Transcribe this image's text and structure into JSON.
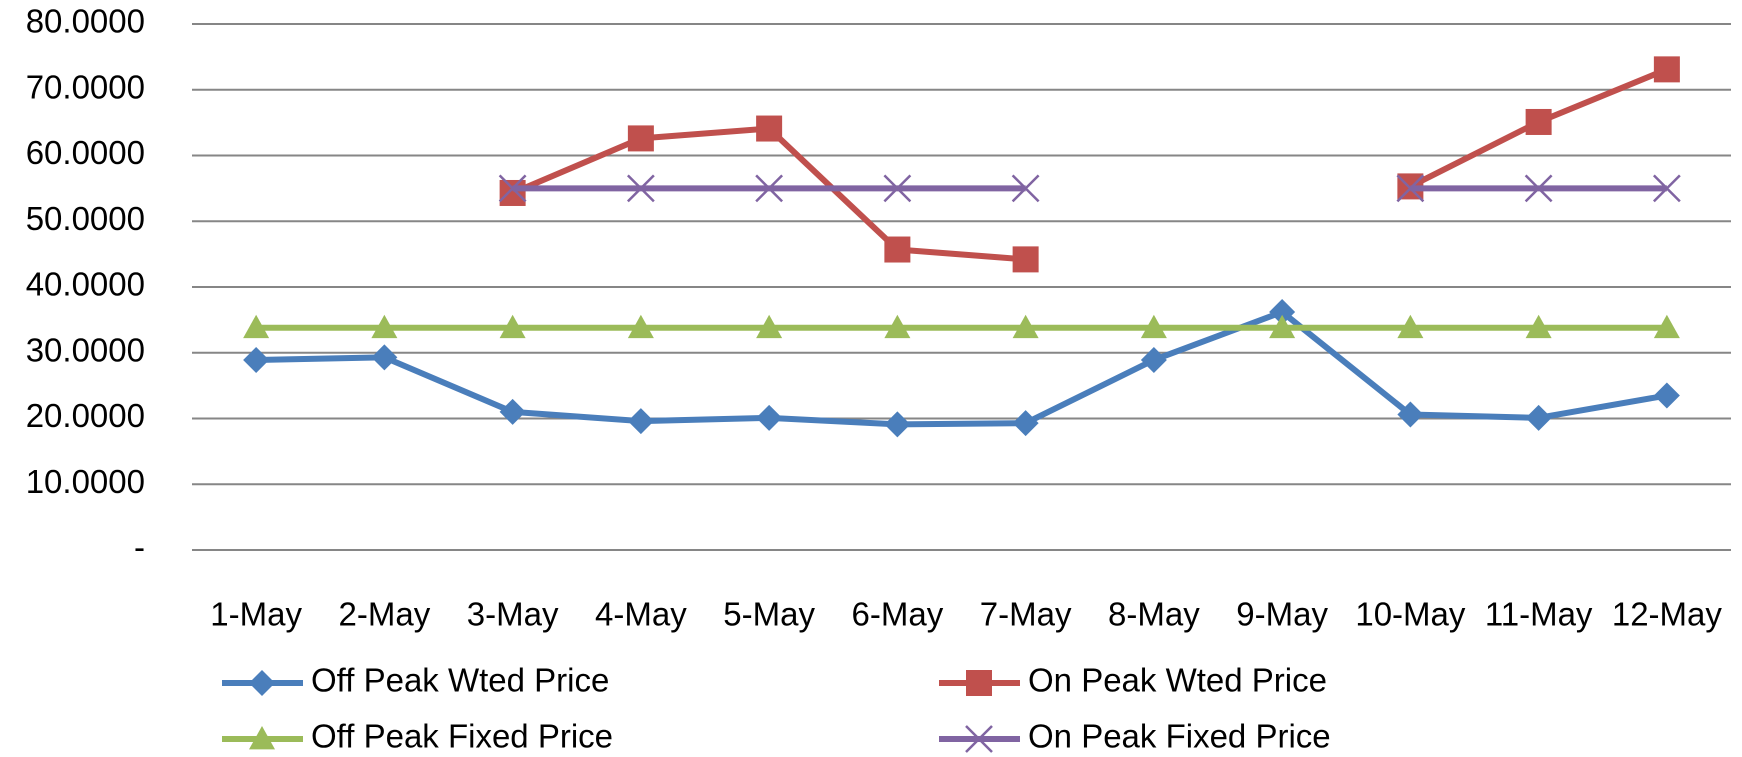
{
  "chart_data": {
    "type": "line",
    "categories": [
      "1-May",
      "2-May",
      "3-May",
      "4-May",
      "5-May",
      "6-May",
      "7-May",
      "8-May",
      "9-May",
      "10-May",
      "11-May",
      "12-May"
    ],
    "series": [
      {
        "name": "Off Peak Wted Price",
        "color": "#4a7ebb",
        "marker": "diamond",
        "values": [
          28.9,
          29.3,
          21.0,
          19.6,
          20.1,
          19.1,
          19.3,
          28.9,
          36.2,
          20.6,
          20.1,
          23.5
        ]
      },
      {
        "name": "On Peak Wted Price",
        "color": "#c0504d",
        "marker": "square",
        "values": [
          null,
          null,
          54.3,
          62.6,
          64.1,
          45.7,
          44.2,
          null,
          null,
          55.3,
          65.1,
          73.1
        ]
      },
      {
        "name": "Off Peak Fixed Price",
        "color": "#9bbb59",
        "marker": "triangle",
        "values": [
          33.8,
          33.8,
          33.8,
          33.8,
          33.8,
          33.8,
          33.8,
          33.8,
          33.8,
          33.8,
          33.8,
          33.8
        ]
      },
      {
        "name": "On Peak Fixed Price",
        "color": "#8064a2",
        "marker": "x",
        "values": [
          null,
          null,
          55,
          55,
          55,
          55,
          55,
          null,
          null,
          55,
          55,
          55
        ]
      }
    ],
    "ylim": [
      0,
      80
    ],
    "yticks": [
      {
        "value": 0,
        "label": "-"
      },
      {
        "value": 10,
        "label": "10.0000"
      },
      {
        "value": 20,
        "label": "20.0000"
      },
      {
        "value": 30,
        "label": "30.0000"
      },
      {
        "value": 40,
        "label": "40.0000"
      },
      {
        "value": 50,
        "label": "50.0000"
      },
      {
        "value": 60,
        "label": "60.0000"
      },
      {
        "value": 70,
        "label": "70.0000"
      },
      {
        "value": 80,
        "label": "80.0000"
      }
    ],
    "grid": true,
    "legend": "bottom"
  }
}
